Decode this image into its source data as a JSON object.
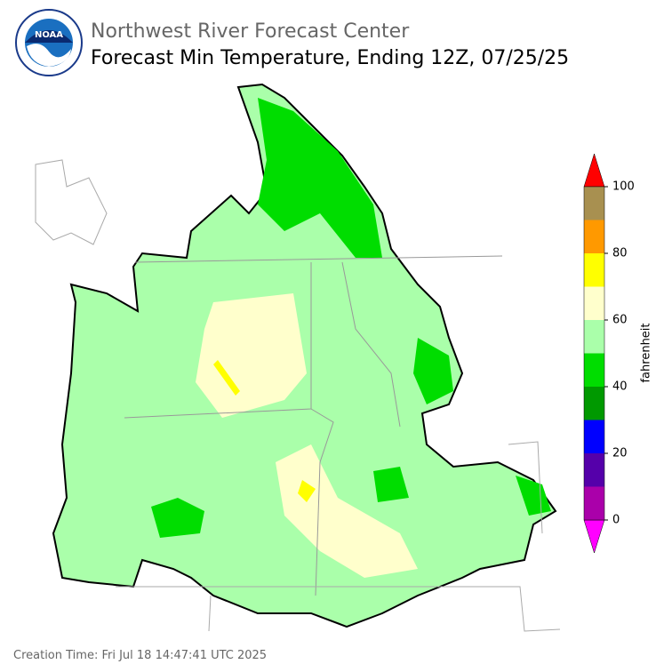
{
  "header": {
    "org": "Northwest River Forecast Center",
    "title": "Forecast Min Temperature, Ending 12Z, 07/25/25"
  },
  "colorbar": {
    "label": "fahrenheit",
    "lim": [
      0,
      100
    ],
    "ticks": [
      0,
      20,
      40,
      60,
      80,
      100
    ],
    "bounds": [
      0,
      10,
      20,
      30,
      40,
      50,
      60,
      70,
      80,
      90,
      100
    ],
    "colors": [
      "#aa00aa",
      "#5500aa",
      "#0000ff",
      "#009900",
      "#00dd00",
      "#aaffaa",
      "#ffffcc",
      "#ffff00",
      "#ff9900",
      "#a89050"
    ],
    "under_color": "#ff00ff",
    "over_color": "#ff0000"
  },
  "footer": {
    "creation_time": "Creation Time: Fri Jul 18 14:47:41 UTC 2025"
  }
}
